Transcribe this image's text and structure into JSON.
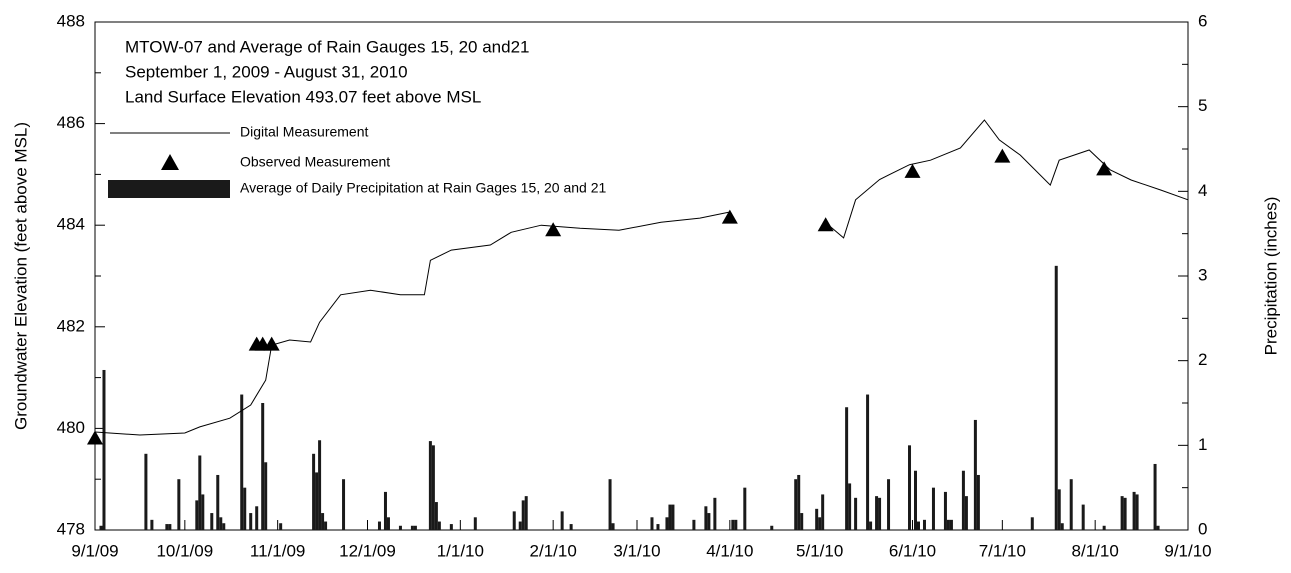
{
  "chart_data": {
    "type": "line",
    "title": [
      "MTOW-07 and Average of Rain Gauges 15, 20 and21",
      "September 1, 2009 - August 31, 2010",
      "Land Surface Elevation 493.07 feet above MSL"
    ],
    "y_label": "Groundwater Elevation (feet above MSL)",
    "y2_label": "Precipitation (inches)",
    "xlim": [
      "2009-09-01",
      "2010-09-01"
    ],
    "xticks": [
      {
        "value": "2009-09-01",
        "label": "9/1/09"
      },
      {
        "value": "2009-10-01",
        "label": "10/1/09"
      },
      {
        "value": "2009-11-01",
        "label": "11/1/09"
      },
      {
        "value": "2009-12-01",
        "label": "12/1/09"
      },
      {
        "value": "2010-01-01",
        "label": "1/1/10"
      },
      {
        "value": "2010-02-01",
        "label": "2/1/10"
      },
      {
        "value": "2010-03-01",
        "label": "3/1/10"
      },
      {
        "value": "2010-04-01",
        "label": "4/1/10"
      },
      {
        "value": "2010-05-01",
        "label": "5/1/10"
      },
      {
        "value": "2010-06-01",
        "label": "6/1/10"
      },
      {
        "value": "2010-07-01",
        "label": "7/1/10"
      },
      {
        "value": "2010-08-01",
        "label": "8/1/10"
      },
      {
        "value": "2010-09-01",
        "label": "9/1/10"
      }
    ],
    "ylim": [
      478,
      488
    ],
    "yticks": [
      478,
      480,
      482,
      484,
      486,
      488
    ],
    "yminorticks": [
      479,
      481,
      483,
      485,
      487
    ],
    "y2lim": [
      0,
      6
    ],
    "y2ticks": [
      0,
      1,
      2,
      3,
      4,
      5,
      6
    ],
    "y2minorticks": [
      0.5,
      1.5,
      2.5,
      3.5,
      4.5,
      5.5
    ],
    "series": [
      {
        "name": "Digital Measurement",
        "type": "line",
        "color": "#000000",
        "x": [
          "2009-09-01",
          "2009-09-16",
          "2009-10-01",
          "2009-10-06",
          "2009-10-16",
          "2009-10-23",
          "2009-10-28",
          "2009-10-30",
          "2009-11-05",
          "2009-11-12",
          "2009-11-15",
          "2009-11-22",
          "2009-12-02",
          "2009-12-12",
          "2009-12-20",
          "2009-12-22",
          "2009-12-29",
          "2010-01-11",
          "2010-01-18",
          "2010-01-28",
          "2010-02-10",
          "2010-02-23",
          "2010-03-09",
          "2010-03-22",
          "2010-04-01",
          "2010-04-20",
          "2010-05-04",
          "2010-05-09",
          "2010-05-13",
          "2010-05-21",
          "2010-05-31",
          "2010-06-07",
          "2010-06-17",
          "2010-06-25",
          "2010-06-30",
          "2010-07-07",
          "2010-07-17",
          "2010-07-20",
          "2010-07-30",
          "2010-08-06",
          "2010-08-13",
          "2010-08-23",
          "2010-09-01"
        ],
        "values": [
          479.93,
          479.87,
          479.91,
          480.03,
          480.2,
          480.46,
          480.95,
          481.64,
          481.74,
          481.7,
          482.09,
          482.63,
          482.72,
          482.63,
          482.63,
          483.31,
          483.51,
          483.61,
          483.86,
          484.0,
          483.94,
          483.9,
          484.06,
          484.14,
          484.26,
          null,
          484.0,
          483.75,
          484.5,
          484.9,
          485.19,
          485.28,
          485.52,
          486.07,
          485.68,
          485.38,
          484.79,
          485.28,
          485.48,
          485.09,
          484.89,
          484.69,
          484.5
        ]
      },
      {
        "name": "Observed Measurement",
        "type": "marker",
        "color": "#000000",
        "x": [
          "2009-09-01",
          "2009-10-25",
          "2009-10-27",
          "2009-10-30",
          "2010-02-01",
          "2010-04-01",
          "2010-05-03",
          "2010-06-01",
          "2010-07-01",
          "2010-08-04"
        ],
        "values": [
          479.8,
          481.65,
          481.65,
          481.65,
          483.9,
          484.15,
          484.0,
          485.05,
          485.35,
          485.1
        ]
      },
      {
        "name": "Average of Daily Precipitation at Rain Gages 15, 20 and 21",
        "type": "bar",
        "axis": "y2",
        "color": "#1a1a1a",
        "x": [
          "2009-09-03",
          "2009-09-04",
          "2009-09-18",
          "2009-09-20",
          "2009-09-25",
          "2009-09-26",
          "2009-09-29",
          "2009-10-05",
          "2009-10-06",
          "2009-10-07",
          "2009-10-10",
          "2009-10-12",
          "2009-10-13",
          "2009-10-14",
          "2009-10-20",
          "2009-10-21",
          "2009-10-23",
          "2009-10-25",
          "2009-10-27",
          "2009-10-28",
          "2009-11-02",
          "2009-11-13",
          "2009-11-14",
          "2009-11-15",
          "2009-11-16",
          "2009-11-17",
          "2009-11-23",
          "2009-12-05",
          "2009-12-07",
          "2009-12-08",
          "2009-12-12",
          "2009-12-16",
          "2009-12-17",
          "2009-12-22",
          "2009-12-23",
          "2009-12-24",
          "2009-12-25",
          "2009-12-29",
          "2010-01-06",
          "2010-01-19",
          "2010-01-21",
          "2010-01-22",
          "2010-01-23",
          "2010-02-04",
          "2010-02-07",
          "2010-02-20",
          "2010-02-21",
          "2010-03-06",
          "2010-03-08",
          "2010-03-11",
          "2010-03-12",
          "2010-03-13",
          "2010-03-20",
          "2010-03-24",
          "2010-03-25",
          "2010-03-27",
          "2010-04-02",
          "2010-04-03",
          "2010-04-06",
          "2010-04-15",
          "2010-04-23",
          "2010-04-24",
          "2010-04-25",
          "2010-04-30",
          "2010-05-01",
          "2010-05-02",
          "2010-05-10",
          "2010-05-11",
          "2010-05-13",
          "2010-05-17",
          "2010-05-18",
          "2010-05-20",
          "2010-05-21",
          "2010-05-24",
          "2010-05-31",
          "2010-06-02",
          "2010-06-03",
          "2010-06-05",
          "2010-06-08",
          "2010-06-12",
          "2010-06-13",
          "2010-06-14",
          "2010-06-18",
          "2010-06-19",
          "2010-06-22",
          "2010-06-23",
          "2010-07-11",
          "2010-07-19",
          "2010-07-20",
          "2010-07-21",
          "2010-07-24",
          "2010-07-28",
          "2010-08-04",
          "2010-08-10",
          "2010-08-11",
          "2010-08-14",
          "2010-08-15",
          "2010-08-21",
          "2010-08-22"
        ],
        "values": [
          0.05,
          1.89,
          0.9,
          0.12,
          0.07,
          0.07,
          0.6,
          0.35,
          0.88,
          0.42,
          0.2,
          0.65,
          0.15,
          0.08,
          1.6,
          0.5,
          0.2,
          0.28,
          1.5,
          0.8,
          0.08,
          0.9,
          0.68,
          1.06,
          0.2,
          0.1,
          0.6,
          0.1,
          0.45,
          0.15,
          0.05,
          0.05,
          0.05,
          1.05,
          1.0,
          0.33,
          0.1,
          0.07,
          0.15,
          0.22,
          0.1,
          0.35,
          0.4,
          0.22,
          0.07,
          0.6,
          0.08,
          0.15,
          0.07,
          0.15,
          0.3,
          0.3,
          0.12,
          0.28,
          0.2,
          0.38,
          0.12,
          0.12,
          0.5,
          0.05,
          0.6,
          0.65,
          0.2,
          0.25,
          0.15,
          0.42,
          1.45,
          0.55,
          0.38,
          1.6,
          0.1,
          0.4,
          0.38,
          0.6,
          1.0,
          0.7,
          0.1,
          0.12,
          0.5,
          0.45,
          0.12,
          0.12,
          0.7,
          0.4,
          1.3,
          0.65,
          0.15,
          3.12,
          0.48,
          0.08,
          0.6,
          0.3,
          0.05,
          0.4,
          0.38,
          0.45,
          0.42,
          0.78,
          0.05
        ]
      }
    ]
  }
}
